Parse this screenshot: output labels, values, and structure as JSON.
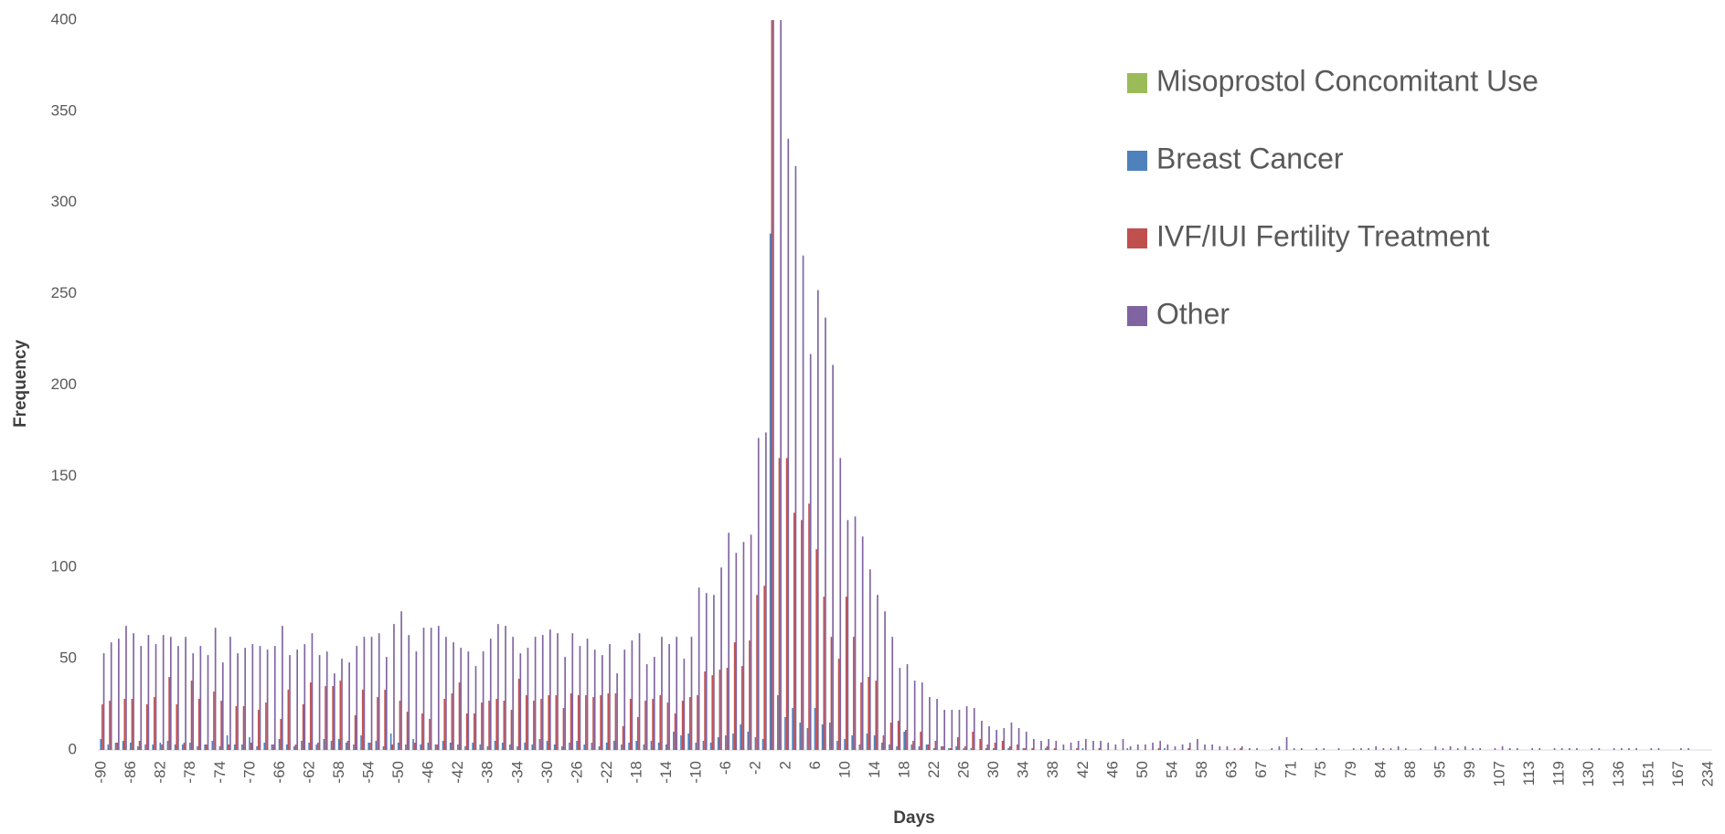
{
  "chart_data": {
    "type": "bar",
    "x_label": "Days",
    "y_label": "Frequency",
    "categories": [
      "-90",
      null,
      null,
      null,
      "-86",
      null,
      null,
      null,
      "-82",
      null,
      null,
      null,
      "-78",
      null,
      null,
      null,
      "-74",
      null,
      null,
      null,
      "-70",
      null,
      null,
      null,
      "-66",
      null,
      null,
      null,
      "-62",
      null,
      null,
      null,
      "-58",
      null,
      null,
      null,
      "-54",
      null,
      null,
      null,
      "-50",
      null,
      null,
      null,
      "-46",
      null,
      null,
      null,
      "-42",
      null,
      null,
      null,
      "-38",
      null,
      null,
      null,
      "-34",
      null,
      null,
      null,
      "-30",
      null,
      null,
      null,
      "-26",
      null,
      null,
      null,
      "-22",
      null,
      null,
      null,
      "-18",
      null,
      null,
      null,
      "-14",
      null,
      null,
      null,
      "-10",
      null,
      null,
      null,
      "-6",
      null,
      null,
      null,
      "-2",
      null,
      null,
      null,
      "2",
      null,
      null,
      null,
      "6",
      null,
      null,
      null,
      "10",
      null,
      null,
      null,
      "14",
      null,
      null,
      null,
      "18",
      null,
      null,
      null,
      "22",
      null,
      null,
      null,
      "26",
      null,
      null,
      null,
      "30",
      null,
      null,
      null,
      "34",
      null,
      null,
      null,
      "38",
      null,
      null,
      null,
      "42",
      null,
      null,
      null,
      "46",
      null,
      null,
      null,
      "50",
      null,
      null,
      null,
      "54",
      null,
      null,
      null,
      "58",
      null,
      null,
      null,
      "63",
      null,
      null,
      null,
      "67",
      null,
      null,
      null,
      "71",
      null,
      null,
      null,
      "75",
      null,
      null,
      null,
      "79",
      null,
      null,
      null,
      "84",
      null,
      null,
      null,
      "88",
      null,
      null,
      null,
      "95",
      null,
      null,
      null,
      "99",
      null,
      null,
      null,
      "107",
      null,
      null,
      null,
      "113",
      null,
      null,
      null,
      "119",
      null,
      null,
      null,
      "130",
      null,
      null,
      null,
      "136",
      null,
      null,
      null,
      "151",
      null,
      null,
      null,
      "167",
      null,
      null,
      null,
      "234"
    ],
    "series": [
      {
        "name": "Misoprostol Concomitant Use",
        "color": "#9bbb59",
        "values": [
          0,
          0,
          0,
          0,
          0,
          0,
          0,
          0,
          0,
          0,
          0,
          0,
          0,
          0,
          0,
          0,
          0,
          0,
          0,
          0,
          0,
          0,
          0,
          0,
          0,
          0,
          0,
          0,
          0,
          0,
          0,
          0,
          0,
          0,
          0,
          0,
          0,
          0,
          0,
          0,
          0,
          0,
          0,
          0,
          0,
          0,
          0,
          0,
          0,
          0,
          0,
          0,
          0,
          0,
          0,
          0,
          0,
          0,
          0,
          0,
          0,
          0,
          0,
          0,
          0,
          0,
          0,
          0,
          0,
          0,
          0,
          0,
          0,
          0,
          0,
          0,
          0,
          0,
          0,
          0,
          0,
          0,
          0,
          0,
          0,
          0,
          0,
          0,
          0,
          0,
          0,
          0,
          0,
          0,
          0,
          0,
          0,
          0,
          0,
          0,
          0,
          0,
          0,
          0,
          0,
          0,
          0,
          0,
          0,
          0,
          0,
          0,
          0,
          0,
          0,
          0,
          0,
          0,
          0,
          0,
          0,
          0,
          0,
          0,
          0,
          0,
          0,
          0,
          0,
          0,
          0,
          0,
          0,
          0,
          0,
          0,
          0,
          0,
          0,
          0,
          0,
          0,
          0,
          0,
          0,
          0,
          0,
          0,
          0,
          0,
          0,
          0,
          0,
          0,
          0,
          0,
          0,
          0,
          0,
          0,
          0,
          0,
          0,
          0,
          0,
          0,
          0,
          0,
          0,
          0,
          0,
          0,
          0,
          0,
          0,
          0,
          0,
          0,
          0,
          0,
          0,
          0,
          0,
          0,
          0,
          0,
          0,
          0,
          0,
          0,
          0,
          0,
          0,
          0,
          0,
          0,
          0,
          0,
          0,
          0,
          0,
          0,
          0,
          0,
          0,
          0,
          0,
          0,
          0,
          0,
          0,
          0,
          0,
          0,
          0,
          0,
          0
        ]
      },
      {
        "name": "Breast Cancer",
        "color": "#4f81bd",
        "values": [
          6,
          3,
          4,
          5,
          4,
          2,
          3,
          3,
          4,
          5,
          3,
          3,
          4,
          2,
          3,
          5,
          2,
          8,
          3,
          3,
          7,
          2,
          4,
          3,
          6,
          3,
          2,
          5,
          4,
          3,
          6,
          5,
          6,
          4,
          3,
          8,
          4,
          5,
          2,
          9,
          4,
          3,
          6,
          3,
          4,
          3,
          5,
          4,
          3,
          2,
          4,
          3,
          2,
          5,
          4,
          3,
          2,
          4,
          3,
          6,
          5,
          3,
          2,
          4,
          5,
          3,
          4,
          2,
          4,
          5,
          3,
          4,
          5,
          3,
          5,
          4,
          3,
          10,
          8,
          9,
          4,
          5,
          4,
          7,
          8,
          9,
          14,
          10,
          7,
          6,
          283,
          30,
          18,
          23,
          15,
          12,
          23,
          14,
          15,
          5,
          6,
          8,
          3,
          9,
          8,
          4,
          3,
          2,
          10,
          3,
          2,
          3,
          1,
          2,
          1,
          2,
          1,
          1,
          0,
          1,
          1,
          0,
          1,
          0,
          1,
          0,
          0,
          1,
          0,
          0,
          0,
          0,
          1,
          0,
          0,
          0,
          0,
          0,
          1,
          0,
          0,
          0,
          0,
          1,
          0,
          0,
          0,
          0,
          0,
          0,
          0,
          0,
          0,
          0,
          0,
          0,
          0,
          0,
          0,
          0,
          0,
          0,
          0,
          0,
          0,
          0,
          0,
          0,
          0,
          0,
          0,
          0,
          0,
          0,
          0,
          0,
          0,
          0,
          0,
          0,
          0,
          0,
          0,
          0,
          0,
          0,
          0,
          0,
          0,
          0,
          0,
          0,
          0,
          0,
          0,
          0,
          0,
          0,
          0,
          0,
          0,
          0,
          0,
          0,
          0,
          0,
          0,
          0,
          0,
          0,
          0,
          0,
          0,
          0,
          0,
          0,
          0
        ]
      },
      {
        "name": "IVF/IUI Fertility Treatment",
        "color": "#c0504d",
        "values": [
          25,
          27,
          4,
          28,
          28,
          5,
          25,
          29,
          3,
          40,
          25,
          4,
          38,
          28,
          3,
          32,
          27,
          3,
          24,
          24,
          4,
          22,
          26,
          3,
          17,
          33,
          3,
          25,
          37,
          4,
          35,
          35,
          38,
          5,
          19,
          33,
          4,
          29,
          33,
          3,
          27,
          21,
          4,
          20,
          17,
          3,
          28,
          31,
          37,
          20,
          20,
          26,
          27,
          28,
          27,
          22,
          39,
          30,
          27,
          28,
          30,
          30,
          23,
          31,
          30,
          30,
          29,
          30,
          31,
          31,
          13,
          28,
          18,
          27,
          28,
          30,
          26,
          20,
          27,
          29,
          30,
          43,
          41,
          44,
          45,
          59,
          46,
          60,
          85,
          90,
          400,
          160,
          160,
          130,
          126,
          135,
          110,
          84,
          62,
          50,
          84,
          62,
          37,
          40,
          38,
          8,
          15,
          16,
          11,
          5,
          10,
          3,
          5,
          2,
          1,
          7,
          2,
          10,
          6,
          3,
          4,
          5,
          2,
          3,
          1,
          1,
          0,
          2,
          1,
          0,
          0,
          1,
          0,
          0,
          1,
          0,
          0,
          0,
          0,
          0,
          0,
          0,
          1,
          0,
          0,
          0,
          1,
          0,
          0,
          0,
          0,
          0,
          0,
          1,
          0,
          0,
          0,
          0,
          0,
          0,
          0,
          0,
          0,
          0,
          0,
          0,
          0,
          0,
          0,
          0,
          0,
          0,
          0,
          0,
          0,
          0,
          0,
          0,
          0,
          0,
          0,
          0,
          0,
          0,
          0,
          0,
          0,
          0,
          0,
          0,
          0,
          0,
          0,
          0,
          0,
          0,
          0,
          0,
          0,
          0,
          0,
          0,
          0,
          0,
          0,
          0,
          0,
          0,
          0,
          0,
          0,
          0,
          0,
          0,
          0,
          0,
          0
        ]
      },
      {
        "name": "Other",
        "color": "#8064a2",
        "values": [
          53,
          59,
          61,
          68,
          64,
          57,
          63,
          58,
          63,
          62,
          57,
          62,
          53,
          57,
          52,
          67,
          48,
          62,
          53,
          56,
          58,
          57,
          55,
          57,
          68,
          52,
          55,
          58,
          64,
          52,
          54,
          42,
          50,
          48,
          57,
          62,
          62,
          64,
          51,
          69,
          76,
          63,
          54,
          67,
          67,
          68,
          62,
          59,
          56,
          54,
          46,
          54,
          61,
          69,
          68,
          62,
          53,
          56,
          62,
          63,
          66,
          64,
          51,
          64,
          57,
          61,
          55,
          52,
          58,
          42,
          55,
          60,
          64,
          47,
          51,
          62,
          58,
          62,
          50,
          62,
          89,
          86,
          85,
          100,
          119,
          108,
          114,
          118,
          171,
          174,
          400,
          400,
          335,
          320,
          271,
          217,
          252,
          237,
          211,
          160,
          126,
          128,
          117,
          99,
          85,
          76,
          62,
          45,
          47,
          38,
          37,
          29,
          28,
          22,
          22,
          22,
          24,
          23,
          16,
          13,
          11,
          12,
          15,
          12,
          10,
          6,
          5,
          6,
          5,
          3,
          4,
          5,
          6,
          5,
          5,
          4,
          3,
          6,
          2,
          3,
          3,
          4,
          5,
          3,
          2,
          3,
          4,
          6,
          3,
          3,
          2,
          2,
          1,
          2,
          1,
          1,
          0,
          1,
          2,
          7,
          1,
          1,
          0,
          1,
          1,
          0,
          1,
          0,
          1,
          1,
          1,
          2,
          1,
          1,
          2,
          1,
          0,
          1,
          0,
          2,
          1,
          2,
          1,
          2,
          1,
          1,
          0,
          1,
          2,
          1,
          1,
          0,
          1,
          1,
          0,
          1,
          1,
          1,
          1,
          0,
          1,
          1,
          0,
          1,
          1,
          1,
          1,
          0,
          1,
          1,
          0,
          0,
          1,
          1,
          0,
          0,
          0
        ]
      }
    ],
    "ylim": [
      0,
      400
    ],
    "yticks": [
      0,
      50,
      100,
      150,
      200,
      250,
      300,
      350,
      400
    ],
    "grid": false,
    "legend": "upper-right"
  }
}
